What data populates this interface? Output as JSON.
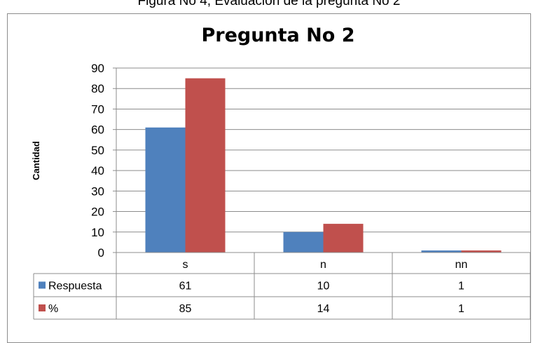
{
  "caption": "Figura No 4, Evaluación de la pregunta No 2",
  "chart_data": {
    "type": "bar",
    "title": "Pregunta No 2",
    "xlabel": "",
    "ylabel": "Cantidad",
    "ylim": [
      0,
      90
    ],
    "ytick_step": 10,
    "grid": true,
    "legend": "data-table",
    "categories": [
      "s",
      "n",
      "nn"
    ],
    "series": [
      {
        "name": "Respuesta",
        "values": [
          61,
          10,
          1
        ],
        "color": "#4f81bd"
      },
      {
        "name": "%",
        "values": [
          85,
          14,
          1
        ],
        "color": "#c0504d"
      }
    ]
  }
}
